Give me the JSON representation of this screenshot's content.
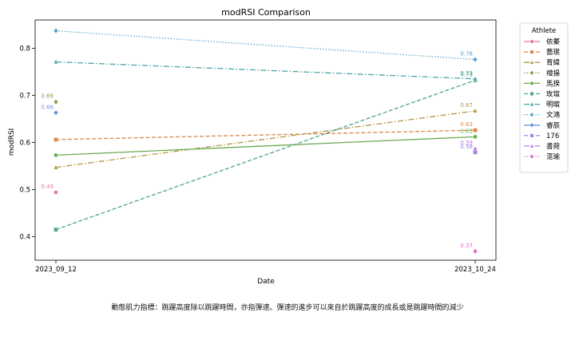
{
  "chart_data": {
    "type": "line",
    "title": "modRSI Comparison",
    "xlabel": "Date",
    "ylabel": "modRSI",
    "categories": [
      "2023_09_12",
      "2023_10_24"
    ],
    "ylim": [
      0.35,
      0.86
    ],
    "yticks": [
      "0.4",
      "0.5",
      "0.6",
      "0.7",
      "0.8"
    ],
    "grid": false,
    "legend": {
      "title": "Athlete",
      "placement": "outside-right"
    },
    "series": [
      {
        "name": "依蓁",
        "color": "#e8799a",
        "dash": "solid",
        "marker": "circle",
        "values": [
          0.494,
          null
        ],
        "labels": [
          "0.49",
          ""
        ]
      },
      {
        "name": "蕎珉",
        "color": "#d9874b",
        "dash": "dashed",
        "marker": "square",
        "values": [
          0.606,
          0.626
        ],
        "labels": [
          "",
          "0.63"
        ]
      },
      {
        "name": "育緯",
        "color": "#b59645",
        "dash": "dashdot",
        "marker": "triangle",
        "values": [
          0.547,
          0.667
        ],
        "labels": [
          "",
          "0.67"
        ]
      },
      {
        "name": "禮揚",
        "color": "#8e9a3e",
        "dash": "dotted",
        "marker": "diamond",
        "values": [
          0.686,
          null
        ],
        "labels": [
          "0.69",
          ""
        ]
      },
      {
        "name": "馬揆",
        "color": "#6aaa4e",
        "dash": "solid",
        "marker": "circle",
        "values": [
          0.573,
          0.612
        ],
        "labels": [
          "",
          "0.61"
        ]
      },
      {
        "name": "玫瑄",
        "color": "#4ea38a",
        "dash": "dashed",
        "marker": "square",
        "values": [
          0.415,
          0.732
        ],
        "labels": [
          "",
          "0.73"
        ]
      },
      {
        "name": "明暄",
        "color": "#4aa5a5",
        "dash": "dashdot",
        "marker": "triangle",
        "values": [
          0.771,
          0.735
        ],
        "labels": [
          "",
          "0.73"
        ]
      },
      {
        "name": "文鴻",
        "color": "#56a2cf",
        "dash": "dotted",
        "marker": "diamond",
        "values": [
          0.837,
          0.776
        ],
        "labels": [
          "",
          "0.78"
        ]
      },
      {
        "name": "睿辰",
        "color": "#6f97e0",
        "dash": "solid",
        "marker": "circle",
        "values": [
          0.663,
          null
        ],
        "labels": [
          "0.66",
          ""
        ]
      },
      {
        "name": "176",
        "color": "#9c83e0",
        "dash": "dashed",
        "marker": "square",
        "values": [
          null,
          0.579
        ],
        "labels": [
          "",
          "0.58"
        ]
      },
      {
        "name": "書菀",
        "color": "#c27ae0",
        "dash": "dashdot",
        "marker": "triangle",
        "values": [
          null,
          0.587
        ],
        "labels": [
          "",
          "0.59"
        ]
      },
      {
        "name": "洭瑜",
        "color": "#df6cc5",
        "dash": "dotted",
        "marker": "diamond",
        "values": [
          null,
          0.369
        ],
        "labels": [
          "",
          "0.37"
        ]
      }
    ]
  },
  "caption": "動態肌力指標：跳躍高度除以跳躍時間，亦指彈速。彈速的進步可以來自於跳躍高度的成長或是跳躍時間的減少"
}
